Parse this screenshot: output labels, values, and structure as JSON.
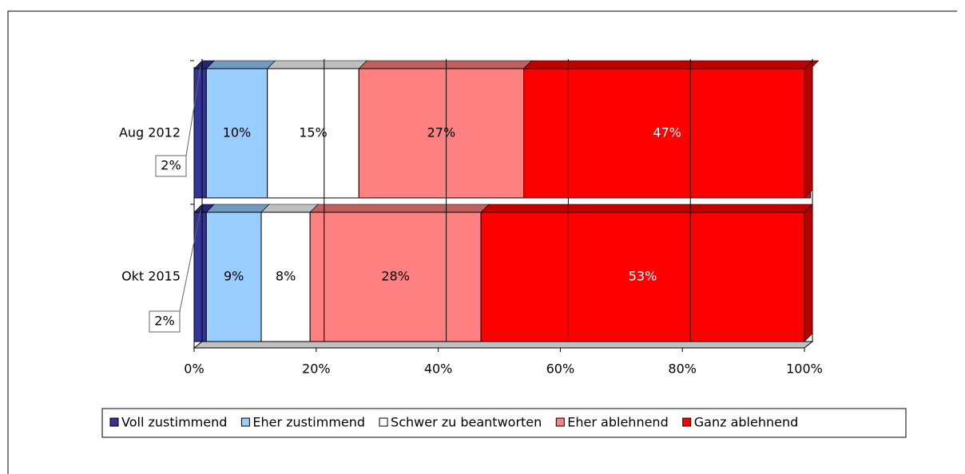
{
  "chart_data": {
    "type": "stacked-bar-horizontal",
    "categories": [
      "Aug 2012",
      "Okt 2015"
    ],
    "series": [
      {
        "name": "Voll zustimmend",
        "color": "#333399",
        "values": [
          2,
          2
        ],
        "value_labels": [
          "2%",
          "2%"
        ]
      },
      {
        "name": "Eher zustimmend",
        "color": "#99ccff",
        "values": [
          10,
          9
        ],
        "value_labels": [
          "10%",
          "9%"
        ]
      },
      {
        "name": "Schwer zu beantworten",
        "color": "#ffffff",
        "values": [
          15,
          8
        ],
        "value_labels": [
          "15%",
          "8%"
        ]
      },
      {
        "name": "Eher ablehnend",
        "color": "#ff8080",
        "values": [
          27,
          28
        ],
        "value_labels": [
          "27%",
          "28%"
        ]
      },
      {
        "name": "Ganz ablehnend",
        "color": "#ff0000",
        "values": [
          47,
          53
        ],
        "value_labels": [
          "47%",
          "53%"
        ]
      }
    ],
    "xlim": [
      0,
      100
    ],
    "xticks": [
      {
        "value": 0,
        "label": "0%"
      },
      {
        "value": 20,
        "label": "20%"
      },
      {
        "value": 40,
        "label": "40%"
      },
      {
        "value": 60,
        "label": "60%"
      },
      {
        "value": 80,
        "label": "80%"
      },
      {
        "value": 100,
        "label": "100%"
      }
    ],
    "grid": true,
    "legend": "bottom"
  }
}
